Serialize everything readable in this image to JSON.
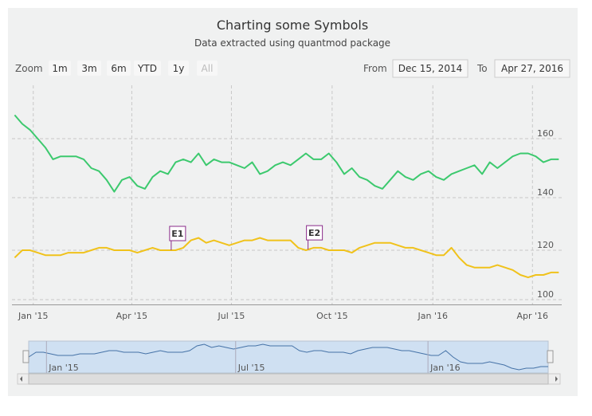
{
  "chart_data": {
    "type": "line",
    "title": "Charting some Symbols",
    "subtitle": "Data extracted using quantmod package",
    "range_selector": {
      "label": "Zoom",
      "buttons": [
        "1m",
        "3m",
        "6m",
        "YTD",
        "1y",
        "All"
      ],
      "from_label": "From",
      "from": "Dec 15, 2014",
      "to_label": "To",
      "to": "Apr 27, 2016"
    },
    "x": [
      "2014-12-15",
      "2014-12-22",
      "2014-12-29",
      "2015-01-05",
      "2015-01-12",
      "2015-01-19",
      "2015-01-26",
      "2015-02-02",
      "2015-02-09",
      "2015-02-16",
      "2015-02-23",
      "2015-03-02",
      "2015-03-09",
      "2015-03-16",
      "2015-03-23",
      "2015-03-30",
      "2015-04-06",
      "2015-04-13",
      "2015-04-20",
      "2015-04-27",
      "2015-05-04",
      "2015-05-11",
      "2015-05-18",
      "2015-05-25",
      "2015-06-01",
      "2015-06-08",
      "2015-06-15",
      "2015-06-22",
      "2015-06-29",
      "2015-07-06",
      "2015-07-13",
      "2015-07-20",
      "2015-07-27",
      "2015-08-03",
      "2015-08-10",
      "2015-08-17",
      "2015-08-24",
      "2015-08-31",
      "2015-09-07",
      "2015-09-14",
      "2015-09-21",
      "2015-09-28",
      "2015-10-05",
      "2015-10-12",
      "2015-10-19",
      "2015-10-26",
      "2015-11-02",
      "2015-11-09",
      "2015-11-16",
      "2015-11-23",
      "2015-11-30",
      "2015-12-07",
      "2015-12-14",
      "2015-12-21",
      "2015-12-28",
      "2016-01-04",
      "2016-01-11",
      "2016-01-18",
      "2016-01-25",
      "2016-02-01",
      "2016-02-08",
      "2016-02-15",
      "2016-02-22",
      "2016-02-29",
      "2016-03-07",
      "2016-03-14",
      "2016-03-21",
      "2016-03-28",
      "2016-04-04",
      "2016-04-11",
      "2016-04-18",
      "2016-04-25"
    ],
    "xlim": [
      "2014-12-15",
      "2016-04-27"
    ],
    "xticks": [
      {
        "value": "2015-01-01",
        "label": "Jan '15"
      },
      {
        "value": "2015-04-01",
        "label": "Apr '15"
      },
      {
        "value": "2015-07-01",
        "label": "Jul '15"
      },
      {
        "value": "2015-10-01",
        "label": "Oct '15"
      },
      {
        "value": "2016-01-01",
        "label": "Jan '16"
      },
      {
        "value": "2016-04-01",
        "label": "Apr '16"
      }
    ],
    "ylim": [
      138,
      178
    ],
    "yticks": [
      140,
      160
    ],
    "y2lim": [
      98,
      138
    ],
    "y2ticks": [
      100,
      120
    ],
    "grid": true,
    "series": [
      {
        "color": "#3cc96e",
        "values": [
          168,
          165,
          163,
          160,
          157,
          153,
          154,
          154,
          154,
          153,
          150,
          149,
          146,
          142,
          146,
          147,
          144,
          143,
          147,
          149,
          148,
          152,
          153,
          152,
          155,
          151,
          153,
          152,
          152,
          151,
          150,
          152,
          148,
          149,
          151,
          152,
          151,
          153,
          155,
          153,
          153,
          155,
          152,
          148,
          150,
          147,
          146,
          144,
          143,
          146,
          149,
          147,
          146,
          148,
          149,
          147,
          146,
          148,
          149,
          150,
          151,
          148,
          152,
          150,
          152,
          154,
          155,
          155,
          154,
          152,
          153,
          153
        ]
      },
      {
        "color": "#f0c21b",
        "axis": "y2",
        "values": [
          117,
          120,
          120,
          119,
          118,
          118,
          118,
          119,
          119,
          119,
          120,
          121,
          121,
          120,
          120,
          120,
          119,
          120,
          121,
          120,
          120,
          120,
          121,
          124,
          125,
          123,
          124,
          123,
          122,
          123,
          124,
          124,
          125,
          124,
          124,
          124,
          124,
          121,
          120,
          121,
          121,
          120,
          120,
          120,
          119,
          121,
          122,
          123,
          123,
          123,
          122,
          121,
          121,
          120,
          119,
          118,
          118,
          121,
          117,
          114,
          113,
          113,
          113,
          114,
          113,
          112,
          110,
          109,
          110,
          110,
          111,
          111
        ]
      }
    ],
    "flags": [
      {
        "title": "E1",
        "x": "2015-05-07"
      },
      {
        "title": "E2",
        "x": "2015-09-09"
      }
    ],
    "navigator": {
      "xticks": [
        {
          "value": "2015-01-01",
          "label": "Jan '15"
        },
        {
          "value": "2015-07-01",
          "label": "Jul '15"
        },
        {
          "value": "2016-01-01",
          "label": "Jan '16"
        }
      ]
    }
  }
}
